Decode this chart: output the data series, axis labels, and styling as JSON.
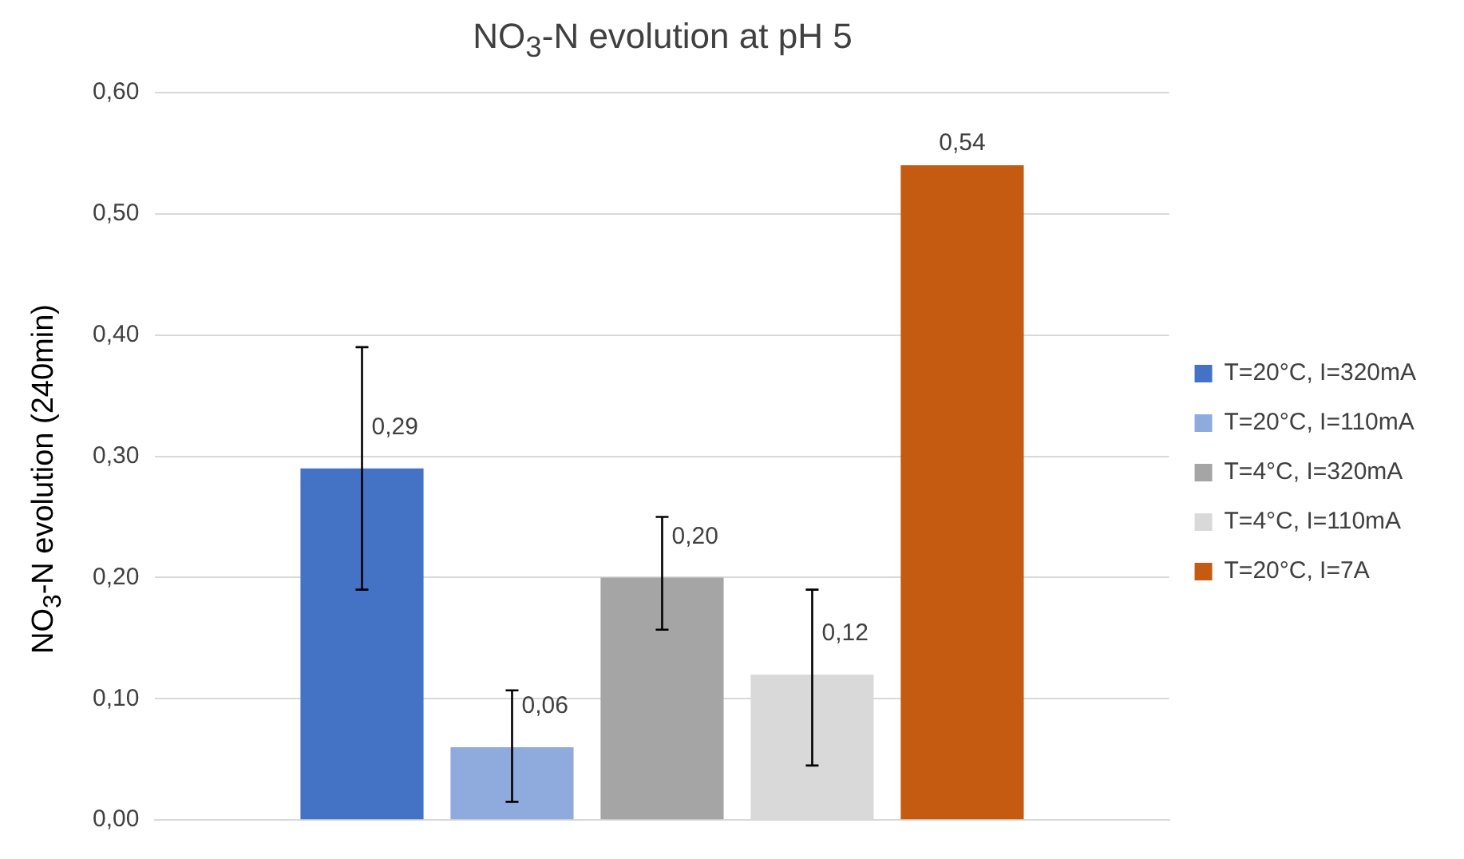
{
  "chart_data": {
    "type": "bar",
    "title": "NO$_{3}$-N evolution at pH 5",
    "ylabel": "NO$_{3}$-N evolution (240min)",
    "categories": [
      null
    ],
    "series": [
      {
        "name": "T=20°C, I=320mA",
        "color": "#4472c4",
        "values": [
          0.29
        ],
        "value_labels": [
          "0,29"
        ],
        "errors": [
          [
            0.19,
            0.39
          ]
        ]
      },
      {
        "name": "T=20°C, I=110mA",
        "color": "#8faadc",
        "values": [
          0.06
        ],
        "value_labels": [
          "0,06"
        ],
        "errors": [
          [
            0.015,
            0.107
          ]
        ]
      },
      {
        "name": "T=4°C, I=320mA",
        "color": "#a5a5a5",
        "values": [
          0.2
        ],
        "value_labels": [
          "0,20"
        ],
        "errors": [
          [
            0.157,
            0.25
          ]
        ]
      },
      {
        "name": "T=4°C, I=110mA",
        "color": "#d9d9d9",
        "values": [
          0.12
        ],
        "value_labels": [
          "0,12"
        ],
        "errors": [
          [
            0.045,
            0.19
          ]
        ]
      },
      {
        "name": "T=20°C, I=7A",
        "color": "#c55a11",
        "values": [
          0.54
        ],
        "value_labels": [
          "0,54"
        ]
      }
    ],
    "ylim": [
      0,
      0.6
    ],
    "yticks": [
      {
        "value": 0,
        "label": "0,00"
      },
      {
        "value": 0.1,
        "label": "0,10"
      },
      {
        "value": 0.2,
        "label": "0,20"
      },
      {
        "value": 0.3,
        "label": "0,30"
      },
      {
        "value": 0.4,
        "label": "0,40"
      },
      {
        "value": 0.5,
        "label": "0,50"
      },
      {
        "value": 0.6,
        "label": "0,60"
      }
    ],
    "grid": "y",
    "legend": "right"
  }
}
